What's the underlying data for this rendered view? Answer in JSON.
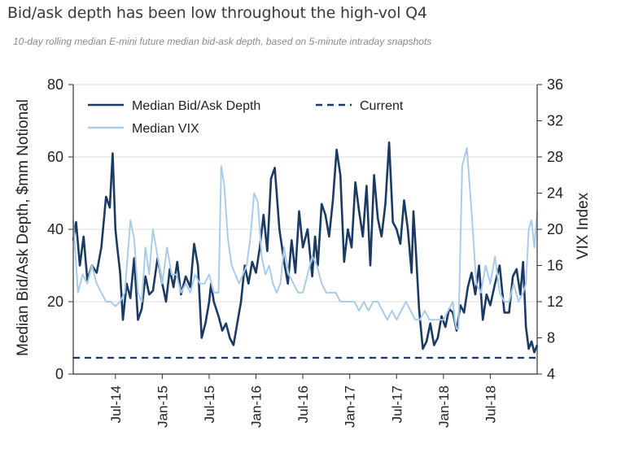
{
  "title": "Bid/ask depth has been low throughout the high-vol Q4",
  "subtitle": "10-day rolling median E-mini future median bid-ask depth, based on 5-minute intraday snapshots",
  "chart_data": {
    "type": "line",
    "ylabel": "Median Bid/Ask Depth, $mm Notional",
    "y2label": "VIX Index",
    "ylim": [
      0,
      80
    ],
    "y2lim": [
      4,
      36
    ],
    "yticks": [
      "0",
      "20",
      "40",
      "60",
      "80"
    ],
    "y2ticks": [
      "4",
      "8",
      "12",
      "16",
      "20",
      "24",
      "28",
      "32",
      "36"
    ],
    "xticks": [
      "Jul-14",
      "Jan-15",
      "Jul-15",
      "Jan-16",
      "Jul-16",
      "Jan-17",
      "Jul-17",
      "Jan-18",
      "Jul-18"
    ],
    "xlim": [
      2014.05,
      2019.0
    ],
    "grid": "horizontal",
    "legend_position": "top",
    "series": [
      {
        "name": "Median Bid/Ask Depth",
        "axis": "left",
        "color": "#1b3a63",
        "style": "solid",
        "x": [
          2014.05,
          2014.08,
          2014.12,
          2014.16,
          2014.2,
          2014.25,
          2014.3,
          2014.35,
          2014.4,
          2014.44,
          2014.47,
          2014.5,
          2014.52,
          2014.55,
          2014.58,
          2014.62,
          2014.66,
          2014.7,
          2014.74,
          2014.78,
          2014.82,
          2014.86,
          2014.9,
          2014.95,
          2015.0,
          2015.04,
          2015.08,
          2015.12,
          2015.16,
          2015.2,
          2015.25,
          2015.3,
          2015.34,
          2015.38,
          2015.42,
          2015.46,
          2015.5,
          2015.52,
          2015.55,
          2015.6,
          2015.64,
          2015.68,
          2015.72,
          2015.76,
          2015.8,
          2015.84,
          2015.88,
          2015.92,
          2015.96,
          2016.0,
          2016.04,
          2016.08,
          2016.12,
          2016.16,
          2016.2,
          2016.25,
          2016.3,
          2016.34,
          2016.38,
          2016.42,
          2016.46,
          2016.5,
          2016.55,
          2016.6,
          2016.63,
          2016.66,
          2016.7,
          2016.74,
          2016.78,
          2016.82,
          2016.86,
          2016.9,
          2016.94,
          2016.98,
          2017.02,
          2017.06,
          2017.1,
          2017.14,
          2017.18,
          2017.22,
          2017.26,
          2017.3,
          2017.34,
          2017.38,
          2017.42,
          2017.46,
          2017.5,
          2017.54,
          2017.58,
          2017.62,
          2017.66,
          2017.68,
          2017.71,
          2017.74,
          2017.78,
          2017.82,
          2017.86,
          2017.9,
          2017.94,
          2017.98,
          2018.02,
          2018.06,
          2018.1,
          2018.14,
          2018.18,
          2018.22,
          2018.26,
          2018.3,
          2018.34,
          2018.38,
          2018.42,
          2018.46,
          2018.5,
          2018.55,
          2018.6,
          2018.65,
          2018.7,
          2018.74,
          2018.78,
          2018.82,
          2018.85,
          2018.88,
          2018.91,
          2018.94,
          2018.97,
          2019.0
        ],
        "values": [
          37,
          42,
          30,
          38,
          26,
          30,
          28,
          35,
          49,
          46,
          61,
          40,
          35,
          28,
          15,
          25,
          21,
          32,
          15,
          18,
          27,
          22,
          23,
          32,
          25,
          20,
          29,
          24,
          31,
          22,
          27,
          24,
          36,
          30,
          10,
          14,
          20,
          25,
          20,
          16,
          12,
          14,
          10,
          8,
          14,
          20,
          30,
          25,
          31,
          28,
          35,
          44,
          34,
          54,
          57,
          40,
          31,
          25,
          37,
          28,
          45,
          35,
          40,
          27,
          38,
          30,
          47,
          44,
          38,
          48,
          62,
          55,
          31,
          40,
          35,
          53,
          45,
          38,
          52,
          30,
          55,
          43,
          38,
          47,
          64,
          42,
          40,
          36,
          48,
          40,
          28,
          45,
          32,
          18,
          7,
          9,
          14,
          8,
          10,
          16,
          13,
          18,
          17,
          12,
          19,
          17,
          24,
          28,
          22,
          30,
          15,
          22,
          19,
          25,
          30,
          17,
          17,
          27,
          29,
          22,
          31,
          13,
          7,
          9,
          6,
          8
        ],
        "x_note": "sequence index of series points"
      },
      {
        "name": "Median VIX",
        "axis": "right",
        "color": "#a9cceb",
        "style": "solid",
        "x": [
          2014.05,
          2014.1,
          2014.15,
          2014.2,
          2014.25,
          2014.3,
          2014.35,
          2014.4,
          2014.45,
          2014.5,
          2014.55,
          2014.6,
          2014.63,
          2014.66,
          2014.7,
          2014.74,
          2014.78,
          2014.82,
          2014.86,
          2014.9,
          2014.95,
          2015.0,
          2015.05,
          2015.1,
          2015.15,
          2015.2,
          2015.25,
          2015.3,
          2015.35,
          2015.4,
          2015.45,
          2015.5,
          2015.55,
          2015.6,
          2015.63,
          2015.66,
          2015.7,
          2015.74,
          2015.78,
          2015.82,
          2015.86,
          2015.9,
          2015.94,
          2015.98,
          2016.02,
          2016.06,
          2016.1,
          2016.14,
          2016.18,
          2016.22,
          2016.26,
          2016.3,
          2016.35,
          2016.4,
          2016.45,
          2016.5,
          2016.55,
          2016.6,
          2016.65,
          2016.7,
          2016.75,
          2016.8,
          2016.85,
          2016.9,
          2016.95,
          2017.0,
          2017.05,
          2017.1,
          2017.15,
          2017.2,
          2017.25,
          2017.3,
          2017.35,
          2017.4,
          2017.45,
          2017.5,
          2017.55,
          2017.6,
          2017.65,
          2017.7,
          2017.75,
          2017.8,
          2017.85,
          2017.9,
          2017.95,
          2018.0,
          2018.05,
          2018.1,
          2018.12,
          2018.14,
          2018.16,
          2018.2,
          2018.25,
          2018.3,
          2018.35,
          2018.4,
          2018.45,
          2018.5,
          2018.55,
          2018.6,
          2018.65,
          2018.7,
          2018.75,
          2018.8,
          2018.85,
          2018.88,
          2018.91,
          2018.94,
          2018.97,
          2019.0
        ],
        "values": [
          21,
          13,
          15,
          14,
          16,
          14,
          13,
          12,
          12,
          11.5,
          12,
          13,
          17,
          21,
          19,
          13,
          12,
          18,
          15,
          20,
          17,
          14,
          18,
          15,
          15,
          13,
          14,
          13,
          15,
          14,
          14,
          15,
          13,
          13,
          27,
          25,
          19,
          16,
          15,
          14,
          15,
          16,
          19,
          24,
          23,
          17,
          15,
          16,
          14,
          13,
          14,
          18,
          15,
          14,
          13,
          13,
          15,
          17,
          16,
          14,
          13,
          13,
          13,
          12,
          12,
          12,
          12,
          11,
          12,
          11,
          12,
          12,
          11,
          10,
          11,
          10,
          11,
          12,
          11,
          10,
          10,
          11,
          10,
          10,
          10,
          10,
          11,
          12,
          10,
          9,
          9,
          27,
          29,
          22,
          14,
          13,
          16,
          14,
          17,
          13,
          12,
          12,
          14,
          12,
          13,
          14,
          20,
          21,
          18,
          22
        ]
      },
      {
        "name": "Current",
        "axis": "left",
        "color": "#1b3a63",
        "style": "dashed",
        "x": [
          2014.05,
          2019.0
        ],
        "values": [
          4.5,
          4.5
        ]
      }
    ]
  }
}
